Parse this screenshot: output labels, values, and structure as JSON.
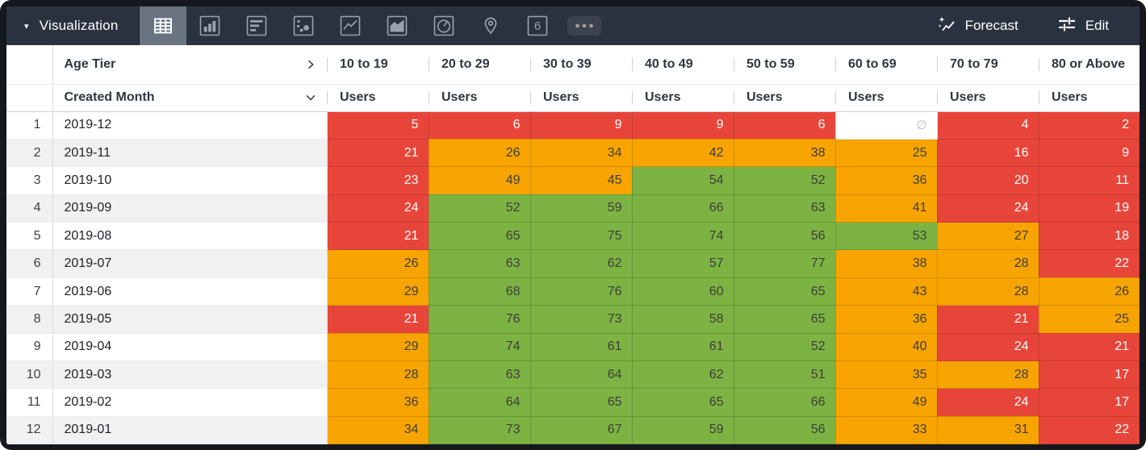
{
  "toolbar": {
    "title": "Visualization",
    "viz_tabs": [
      "table",
      "bar",
      "row",
      "scatter",
      "line",
      "area",
      "pie",
      "map",
      "single-value",
      "more"
    ],
    "selected_viz": "table",
    "single_value_glyph": "6",
    "forecast_label": "Forecast",
    "edit_label": "Edit"
  },
  "table": {
    "pivot_label": "Age Tier",
    "row_label": "Created Month",
    "measure_label": "Users",
    "null_symbol": "∅",
    "columns": [
      "10 to 19",
      "20 to 29",
      "30 to 39",
      "40 to 49",
      "50 to 59",
      "60 to 69",
      "70 to 79",
      "80 or Above"
    ],
    "rows": [
      {
        "index": "1",
        "month": "2019-12",
        "values": [
          5,
          6,
          9,
          9,
          6,
          null,
          4,
          2
        ],
        "colors": [
          "red",
          "red",
          "red",
          "red",
          "red",
          "null",
          "red",
          "red"
        ]
      },
      {
        "index": "2",
        "month": "2019-11",
        "values": [
          21,
          26,
          34,
          42,
          38,
          25,
          16,
          9
        ],
        "colors": [
          "red",
          "orange",
          "orange",
          "orange",
          "orange",
          "orange",
          "red",
          "red"
        ]
      },
      {
        "index": "3",
        "month": "2019-10",
        "values": [
          23,
          49,
          45,
          54,
          52,
          36,
          20,
          11
        ],
        "colors": [
          "red",
          "orange",
          "orange",
          "green",
          "green",
          "orange",
          "red",
          "red"
        ]
      },
      {
        "index": "4",
        "month": "2019-09",
        "values": [
          24,
          52,
          59,
          66,
          63,
          41,
          24,
          19
        ],
        "colors": [
          "red",
          "green",
          "green",
          "green",
          "green",
          "orange",
          "red",
          "red"
        ]
      },
      {
        "index": "5",
        "month": "2019-08",
        "values": [
          21,
          65,
          75,
          74,
          56,
          53,
          27,
          18
        ],
        "colors": [
          "red",
          "green",
          "green",
          "green",
          "green",
          "green",
          "orange",
          "red"
        ]
      },
      {
        "index": "6",
        "month": "2019-07",
        "values": [
          26,
          63,
          62,
          57,
          77,
          38,
          28,
          22
        ],
        "colors": [
          "orange",
          "green",
          "green",
          "green",
          "green",
          "orange",
          "orange",
          "red"
        ]
      },
      {
        "index": "7",
        "month": "2019-06",
        "values": [
          29,
          68,
          76,
          60,
          65,
          43,
          28,
          26
        ],
        "colors": [
          "orange",
          "green",
          "green",
          "green",
          "green",
          "orange",
          "orange",
          "orange"
        ]
      },
      {
        "index": "8",
        "month": "2019-05",
        "values": [
          21,
          76,
          73,
          58,
          65,
          36,
          21,
          25
        ],
        "colors": [
          "red",
          "green",
          "green",
          "green",
          "green",
          "orange",
          "red",
          "orange"
        ]
      },
      {
        "index": "9",
        "month": "2019-04",
        "values": [
          29,
          74,
          61,
          61,
          52,
          40,
          24,
          21
        ],
        "colors": [
          "orange",
          "green",
          "green",
          "green",
          "green",
          "orange",
          "red",
          "red"
        ]
      },
      {
        "index": "10",
        "month": "2019-03",
        "values": [
          28,
          63,
          64,
          62,
          51,
          35,
          28,
          17
        ],
        "colors": [
          "orange",
          "green",
          "green",
          "green",
          "green",
          "orange",
          "orange",
          "red"
        ]
      },
      {
        "index": "11",
        "month": "2019-02",
        "values": [
          36,
          64,
          65,
          65,
          66,
          49,
          24,
          17
        ],
        "colors": [
          "orange",
          "green",
          "green",
          "green",
          "green",
          "orange",
          "red",
          "red"
        ]
      },
      {
        "index": "12",
        "month": "2019-01",
        "values": [
          34,
          73,
          67,
          59,
          56,
          33,
          31,
          22
        ],
        "colors": [
          "orange",
          "green",
          "green",
          "green",
          "green",
          "orange",
          "orange",
          "red"
        ]
      }
    ]
  },
  "colors": {
    "red": "#e8453a",
    "orange": "#f7a400",
    "green": "#7cb342",
    "toolbar_bg": "#2b323f",
    "selected_tab_bg": "#6a7380"
  }
}
